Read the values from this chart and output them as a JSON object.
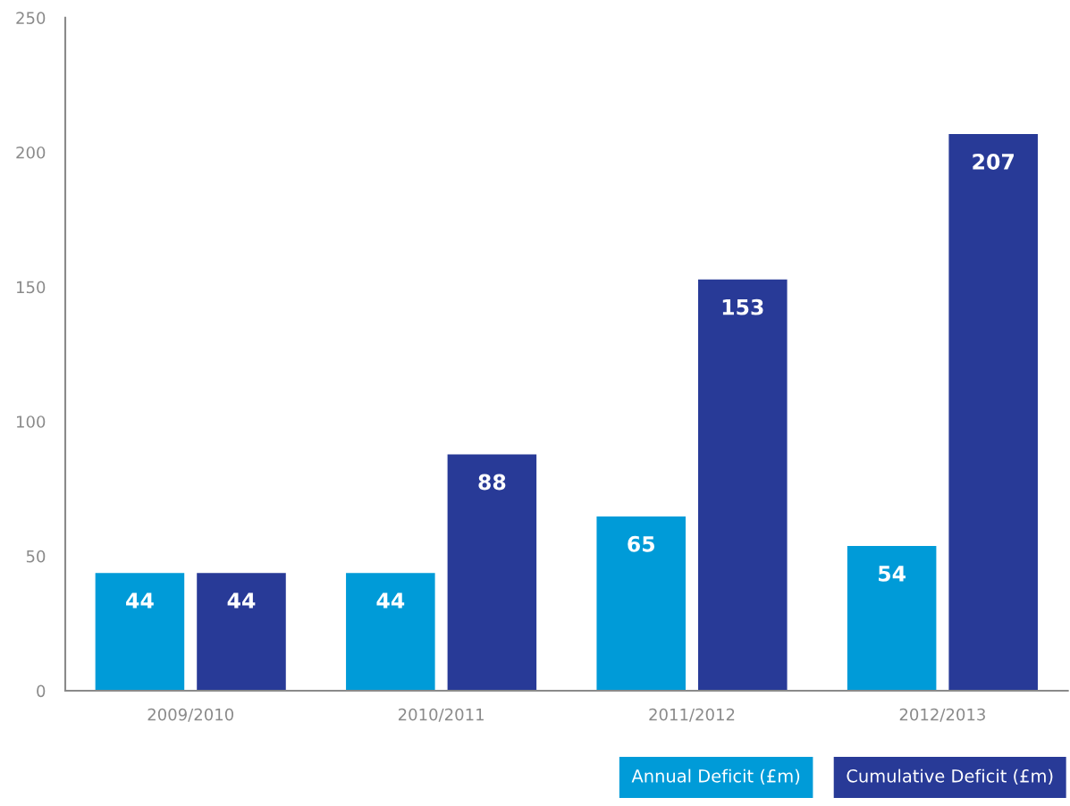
{
  "chart_data": {
    "type": "bar",
    "categories": [
      "2009/2010",
      "2010/2011",
      "2011/2012",
      "2012/2013"
    ],
    "series": [
      {
        "name": "Annual Deficit (£m)",
        "color": "#009bd8",
        "values": [
          44,
          44,
          65,
          54
        ]
      },
      {
        "name": "Cumulative Deficit (£m)",
        "color": "#283a97",
        "values": [
          44,
          88,
          153,
          207
        ]
      }
    ],
    "ylim": [
      0,
      250
    ],
    "yticks": [
      0,
      50,
      100,
      150,
      200,
      250
    ],
    "data_labels": true,
    "grid": false,
    "legend": "bottom right"
  }
}
